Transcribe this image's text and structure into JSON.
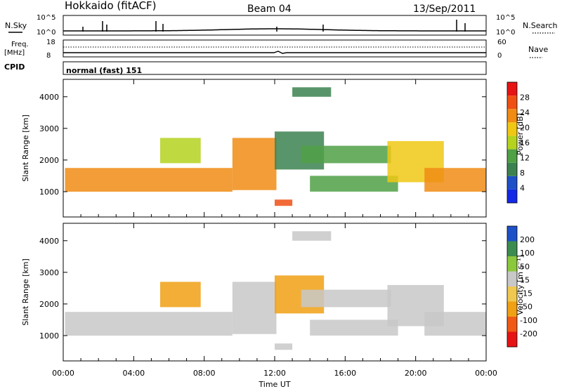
{
  "header": {
    "station": "Hokkaido (fitACF)",
    "beam": "Beam 04",
    "date": "13/Sep/2011"
  },
  "status_panels": {
    "nsky_label": "N.Sky",
    "nsky_ticks": [
      "10^5",
      "10^0"
    ],
    "nsearch_label": "N.Search",
    "nsearch_ticks": [
      "10^5",
      "10^0"
    ],
    "freq_label": "Freq.",
    "freq_unit": "[MHz]",
    "freq_ticks": [
      "18",
      "8"
    ],
    "nave_label": "Nave",
    "nave_ticks": [
      "60",
      "0"
    ],
    "cpid_label": "CPID",
    "cpid_value": "normal (fast) 151"
  },
  "chart_data": [
    {
      "type": "heatmap",
      "name": "power",
      "ylabel": "Slant Range [km]",
      "yticks": [
        1000,
        2000,
        3000,
        4000
      ],
      "ylim": [
        200,
        4550
      ],
      "xlim_hours": [
        0,
        24
      ],
      "colorbar_label": "Power [dB]",
      "colorbar_ticks": [
        "4",
        "8",
        "12",
        "16",
        "20",
        "24",
        "28"
      ],
      "colorbar_colors": [
        "#1428e6",
        "#1e50c8",
        "#3c8250",
        "#50a046",
        "#b4d21e",
        "#f0c814",
        "#f08c14",
        "#f05014",
        "#e61414"
      ]
    },
    {
      "type": "heatmap",
      "name": "velocity",
      "ylabel": "Slant Range [km]",
      "yticks": [
        1000,
        2000,
        3000,
        4000
      ],
      "ylim": [
        200,
        4550
      ],
      "xlim_hours": [
        0,
        24
      ],
      "xlabel": "Time UT",
      "xticks": [
        "00:00",
        "04:00",
        "08:00",
        "12:00",
        "16:00",
        "20:00",
        "00:00"
      ],
      "colorbar_label": "Velocity [m s⁻¹]",
      "colorbar_ticks": [
        "-200",
        "-100",
        "-50",
        "-15",
        "15",
        "50",
        "100",
        "200"
      ],
      "colorbar_colors": [
        "#e61414",
        "#f05a14",
        "#f0a014",
        "#f0c850",
        "#c8c8c8",
        "#8cc83c",
        "#3c8c50",
        "#1e50c8"
      ]
    }
  ],
  "echo_regions": [
    {
      "t0": 0.1,
      "t1": 9.6,
      "r0": 1000,
      "r1": 1750,
      "power": 24,
      "velocity": 0
    },
    {
      "t0": 9.6,
      "t1": 12.1,
      "r0": 1050,
      "r1": 2700,
      "power": 22,
      "velocity": 0
    },
    {
      "t0": 12.0,
      "t1": 14.8,
      "r0": 1700,
      "r1": 2900,
      "power": 9,
      "velocity": -20
    },
    {
      "t0": 13.5,
      "t1": 18.6,
      "r0": 1900,
      "r1": 2450,
      "power": 12,
      "velocity": 0
    },
    {
      "t0": 14.0,
      "t1": 19.0,
      "r0": 1000,
      "r1": 1500,
      "power": 14,
      "velocity": 40
    },
    {
      "t0": 12.0,
      "t1": 13.0,
      "r0": 550,
      "r1": 750,
      "power": 26,
      "velocity": 10
    },
    {
      "t0": 18.4,
      "t1": 21.6,
      "r0": 1300,
      "r1": 2600,
      "power": 20,
      "velocity": 30
    },
    {
      "t0": 20.5,
      "t1": 24.0,
      "r0": 1000,
      "r1": 1750,
      "power": 24,
      "velocity": 0
    },
    {
      "t0": 5.5,
      "t1": 7.8,
      "r0": 1900,
      "r1": 2700,
      "power": 17,
      "velocity": -40
    },
    {
      "t0": 13.0,
      "t1": 15.2,
      "r0": 4000,
      "r1": 4300,
      "power": 9,
      "velocity": 5
    }
  ]
}
